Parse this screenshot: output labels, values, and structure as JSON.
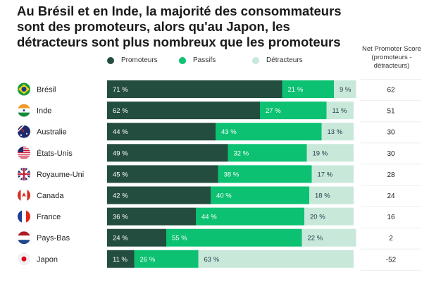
{
  "title": "Au Brésil et en Inde, la majorité des consommateurs sont des promoteurs, alors qu'au Japon, les détracteurs sont plus nombreux que les promoteurs",
  "nps_header": "Net Promoter Score (promoteurs - détracteurs)",
  "chart_data": {
    "type": "bar",
    "orientation": "horizontal",
    "stacked": true,
    "categories": [
      "Brésil",
      "Inde",
      "Australie",
      "États-Unis",
      "Royaume-Uni",
      "Canada",
      "France",
      "Pays-Bas",
      "Japon"
    ],
    "series": [
      {
        "name": "Promoteurs",
        "color": "#234d3e",
        "values": [
          71,
          62,
          44,
          49,
          45,
          42,
          36,
          24,
          11
        ]
      },
      {
        "name": "Passifs",
        "color": "#0cc172",
        "values": [
          21,
          27,
          43,
          32,
          38,
          40,
          44,
          55,
          26
        ]
      },
      {
        "name": "Détracteurs",
        "color": "#c8e8da",
        "values": [
          9,
          11,
          13,
          19,
          17,
          18,
          20,
          22,
          63
        ]
      }
    ],
    "nps": [
      62,
      51,
      30,
      30,
      28,
      24,
      16,
      2,
      -52
    ],
    "unit": "%",
    "legend": "top",
    "flags": [
      "brazil-flag",
      "india-flag",
      "australia-flag",
      "usa-flag",
      "uk-flag",
      "canada-flag",
      "france-flag",
      "netherlands-flag",
      "japan-flag"
    ]
  }
}
